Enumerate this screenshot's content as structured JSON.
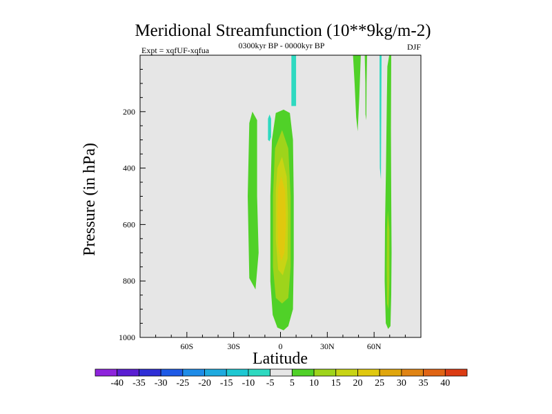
{
  "chart_data": {
    "type": "contour",
    "title": "Meridional Streamfunction (10**9kg/m-2)",
    "left_label": "Expt = xqfUF-xqfua",
    "center_label": "0300kyr BP - 0000kyr BP",
    "right_label": "DJF",
    "xlabel": "Latitude",
    "ylabel": "Pressure (in hPa)",
    "xlim": [
      -90,
      90
    ],
    "ylim": [
      0,
      1000
    ],
    "y_inverted": true,
    "x_ticks": [
      {
        "value": -60,
        "label": "60S"
      },
      {
        "value": -30,
        "label": "30S"
      },
      {
        "value": 0,
        "label": "0"
      },
      {
        "value": 30,
        "label": "30N"
      },
      {
        "value": 60,
        "label": "60N"
      }
    ],
    "y_ticks": [
      {
        "value": 200,
        "label": "200"
      },
      {
        "value": 400,
        "label": "400"
      },
      {
        "value": 600,
        "label": "600"
      },
      {
        "value": 800,
        "label": "800"
      },
      {
        "value": 1000,
        "label": "1000"
      }
    ],
    "background_color": "#e6e6e6",
    "contour_levels": [
      -40,
      -35,
      -30,
      -25,
      -20,
      -15,
      -10,
      -5,
      5,
      10,
      15,
      20,
      25,
      30,
      35,
      40
    ],
    "colorbar_colors": [
      "#8e24dc",
      "#5a1ed2",
      "#2f2fd6",
      "#1e5ae6",
      "#1e8ce8",
      "#1eaadf",
      "#1ec8d2",
      "#2ed9c0",
      "#e6e6e6",
      "#50d128",
      "#9ed41b",
      "#c8d414",
      "#e0c80e",
      "#e0a60d",
      "#e08414",
      "#e06414",
      "#dc3c14"
    ],
    "colorbar_labels": [
      "-40",
      "-35",
      "-30",
      "-25",
      "-20",
      "-15",
      "-10",
      "-5",
      "5",
      "10",
      "15",
      "20",
      "25",
      "30",
      "35",
      "40"
    ],
    "regions": [
      {
        "name": "sh-subtropical-positive",
        "color": "#50d128",
        "points": [
          [
            -18,
            200
          ],
          [
            -15,
            230
          ],
          [
            -15,
            500
          ],
          [
            -14,
            700
          ],
          [
            -16,
            830
          ],
          [
            -20,
            790
          ],
          [
            -21,
            500
          ],
          [
            -20,
            240
          ]
        ]
      },
      {
        "name": "sh-negative-small",
        "color": "#2ed9c0",
        "points": [
          [
            -7,
            210
          ],
          [
            -6,
            225
          ],
          [
            -6,
            290
          ],
          [
            -7,
            305
          ],
          [
            -8,
            300
          ],
          [
            -8,
            225
          ]
        ]
      },
      {
        "name": "equatorial-positive-5",
        "color": "#50d128",
        "points": [
          [
            2,
            193
          ],
          [
            6,
            205
          ],
          [
            8,
            300
          ],
          [
            8.5,
            500
          ],
          [
            8.5,
            720
          ],
          [
            8,
            900
          ],
          [
            5,
            960
          ],
          [
            2,
            975
          ],
          [
            -2,
            965
          ],
          [
            -5,
            920
          ],
          [
            -6.5,
            800
          ],
          [
            -6.5,
            500
          ],
          [
            -5.5,
            300
          ],
          [
            -3,
            205
          ]
        ]
      },
      {
        "name": "equatorial-positive-10",
        "color": "#9ed41b",
        "points": [
          [
            1,
            265
          ],
          [
            5,
            330
          ],
          [
            6.5,
            500
          ],
          [
            6.5,
            750
          ],
          [
            5,
            860
          ],
          [
            1,
            880
          ],
          [
            -3,
            860
          ],
          [
            -4.8,
            750
          ],
          [
            -4.8,
            500
          ],
          [
            -3.5,
            330
          ]
        ]
      },
      {
        "name": "equatorial-positive-15",
        "color": "#c8d414",
        "points": [
          [
            1,
            360
          ],
          [
            4,
            430
          ],
          [
            4.8,
            560
          ],
          [
            4.5,
            720
          ],
          [
            1.5,
            780
          ],
          [
            -1.5,
            760
          ],
          [
            -3,
            650
          ],
          [
            -3,
            480
          ],
          [
            -2,
            400
          ]
        ]
      },
      {
        "name": "equatorial-positive-20",
        "color": "#e0c80e",
        "points": [
          [
            0.5,
            430
          ],
          [
            3,
            480
          ],
          [
            3.5,
            600
          ],
          [
            2.5,
            700
          ],
          [
            0.5,
            730
          ],
          [
            -1.5,
            680
          ],
          [
            -2,
            560
          ],
          [
            -1.5,
            470
          ]
        ]
      },
      {
        "name": "nh-tropical-negative-strip",
        "color": "#2ed9c0",
        "points": [
          [
            7,
            0
          ],
          [
            10,
            0
          ],
          [
            10,
            180
          ],
          [
            7,
            180
          ]
        ]
      },
      {
        "name": "nh-subtropical-positive-1",
        "color": "#50d128",
        "points": [
          [
            46.5,
            0
          ],
          [
            51.5,
            0
          ],
          [
            50.5,
            150
          ],
          [
            49.5,
            270
          ],
          [
            48.5,
            220
          ],
          [
            47.5,
            100
          ]
        ]
      },
      {
        "name": "nh-subtropical-positive-2",
        "color": "#50d128",
        "points": [
          [
            54,
            0
          ],
          [
            55.5,
            0
          ],
          [
            55.2,
            100
          ],
          [
            55,
            230
          ],
          [
            54.5,
            210
          ],
          [
            54.4,
            100
          ]
        ]
      },
      {
        "name": "nh-midlatitude-negative-strip",
        "color": "#2ed9c0",
        "points": [
          [
            63.5,
            0
          ],
          [
            64.8,
            0
          ],
          [
            64.6,
            200
          ],
          [
            64.4,
            440
          ],
          [
            63.7,
            400
          ],
          [
            63.5,
            200
          ]
        ]
      },
      {
        "name": "nh-midlatitude-positive-5",
        "color": "#50d128",
        "points": [
          [
            69.7,
            0
          ],
          [
            71,
            0
          ],
          [
            70.8,
            260
          ],
          [
            71,
            500
          ],
          [
            71.2,
            700
          ],
          [
            71,
            850
          ],
          [
            70.5,
            960
          ],
          [
            69,
            970
          ],
          [
            67.5,
            950
          ],
          [
            66.8,
            800
          ],
          [
            67,
            600
          ],
          [
            67.6,
            400
          ],
          [
            68.2,
            150
          ],
          [
            68.5,
            40
          ]
        ]
      },
      {
        "name": "nh-midlatitude-positive-10",
        "color": "#9ed41b",
        "points": [
          [
            68.8,
            550
          ],
          [
            69.8,
            620
          ],
          [
            69.8,
            800
          ],
          [
            69.2,
            900
          ],
          [
            68.3,
            880
          ],
          [
            68,
            750
          ],
          [
            68.2,
            620
          ]
        ]
      }
    ]
  }
}
